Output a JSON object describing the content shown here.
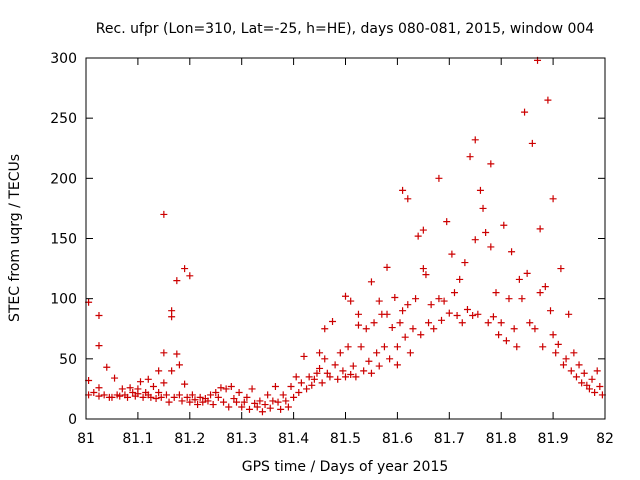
{
  "chart_data": {
    "type": "scatter",
    "title": "Rec. ufpr (Lon=310, Lat=-25, h=HE), days 080-081, 2015, window 004",
    "xlabel": "GPS time / Days of year 2015",
    "ylabel": "STEC from uqrg / TECUs",
    "xlim": [
      81,
      82
    ],
    "ylim": [
      0,
      300
    ],
    "xticks": [
      "81",
      "81.1",
      "81.2",
      "81.3",
      "81.4",
      "81.5",
      "81.6",
      "81.7",
      "81.8",
      "81.9",
      "82"
    ],
    "yticks": [
      "0",
      "50",
      "100",
      "150",
      "200",
      "250",
      "300"
    ],
    "grid": false,
    "marker": "+",
    "color": "#cc0000",
    "points": [
      [
        81.005,
        97
      ],
      [
        81.005,
        32
      ],
      [
        81.005,
        20
      ],
      [
        81.015,
        22
      ],
      [
        81.025,
        86
      ],
      [
        81.025,
        61
      ],
      [
        81.025,
        26
      ],
      [
        81.025,
        19
      ],
      [
        81.035,
        20
      ],
      [
        81.04,
        43
      ],
      [
        81.045,
        18
      ],
      [
        81.05,
        18
      ],
      [
        81.055,
        34
      ],
      [
        81.06,
        20
      ],
      [
        81.065,
        19
      ],
      [
        81.07,
        25
      ],
      [
        81.075,
        20
      ],
      [
        81.08,
        18
      ],
      [
        81.085,
        26
      ],
      [
        81.09,
        22
      ],
      [
        81.095,
        19
      ],
      [
        81.1,
        25
      ],
      [
        81.1,
        21
      ],
      [
        81.105,
        31
      ],
      [
        81.11,
        18
      ],
      [
        81.115,
        22
      ],
      [
        81.12,
        33
      ],
      [
        81.12,
        20
      ],
      [
        81.125,
        18
      ],
      [
        81.13,
        27
      ],
      [
        81.135,
        17
      ],
      [
        81.14,
        40
      ],
      [
        81.14,
        22
      ],
      [
        81.145,
        18
      ],
      [
        81.15,
        170
      ],
      [
        81.15,
        55
      ],
      [
        81.15,
        30
      ],
      [
        81.155,
        20
      ],
      [
        81.16,
        14
      ],
      [
        81.165,
        90
      ],
      [
        81.165,
        85
      ],
      [
        81.165,
        40
      ],
      [
        81.17,
        18
      ],
      [
        81.175,
        115
      ],
      [
        81.175,
        54
      ],
      [
        81.18,
        45
      ],
      [
        81.18,
        20
      ],
      [
        81.185,
        15
      ],
      [
        81.19,
        125
      ],
      [
        81.19,
        29
      ],
      [
        81.195,
        18
      ],
      [
        81.2,
        119
      ],
      [
        81.2,
        14
      ],
      [
        81.205,
        20
      ],
      [
        81.21,
        16
      ],
      [
        81.215,
        12
      ],
      [
        81.22,
        18
      ],
      [
        81.225,
        14
      ],
      [
        81.23,
        17
      ],
      [
        81.235,
        15
      ],
      [
        81.24,
        20
      ],
      [
        81.245,
        12
      ],
      [
        81.25,
        22
      ],
      [
        81.255,
        18
      ],
      [
        81.26,
        26
      ],
      [
        81.265,
        14
      ],
      [
        81.27,
        25
      ],
      [
        81.275,
        10
      ],
      [
        81.28,
        27
      ],
      [
        81.285,
        17
      ],
      [
        81.29,
        14
      ],
      [
        81.295,
        22
      ],
      [
        81.3,
        10
      ],
      [
        81.305,
        14
      ],
      [
        81.31,
        18
      ],
      [
        81.315,
        8
      ],
      [
        81.32,
        25
      ],
      [
        81.325,
        13
      ],
      [
        81.33,
        10
      ],
      [
        81.335,
        15
      ],
      [
        81.34,
        6
      ],
      [
        81.345,
        12
      ],
      [
        81.35,
        20
      ],
      [
        81.355,
        9
      ],
      [
        81.36,
        15
      ],
      [
        81.365,
        27
      ],
      [
        81.37,
        14
      ],
      [
        81.375,
        8
      ],
      [
        81.38,
        20
      ],
      [
        81.385,
        15
      ],
      [
        81.39,
        10
      ],
      [
        81.395,
        27
      ],
      [
        81.4,
        18
      ],
      [
        81.405,
        35
      ],
      [
        81.41,
        22
      ],
      [
        81.415,
        30
      ],
      [
        81.42,
        52
      ],
      [
        81.425,
        25
      ],
      [
        81.43,
        35
      ],
      [
        81.435,
        28
      ],
      [
        81.44,
        33
      ],
      [
        81.445,
        38
      ],
      [
        81.45,
        55
      ],
      [
        81.45,
        42
      ],
      [
        81.455,
        30
      ],
      [
        81.46,
        75
      ],
      [
        81.46,
        50
      ],
      [
        81.465,
        38
      ],
      [
        81.47,
        35
      ],
      [
        81.475,
        81
      ],
      [
        81.48,
        45
      ],
      [
        81.485,
        33
      ],
      [
        81.49,
        55
      ],
      [
        81.495,
        40
      ],
      [
        81.5,
        102
      ],
      [
        81.5,
        35
      ],
      [
        81.505,
        60
      ],
      [
        81.51,
        98
      ],
      [
        81.51,
        37
      ],
      [
        81.515,
        44
      ],
      [
        81.52,
        35
      ],
      [
        81.525,
        87
      ],
      [
        81.525,
        78
      ],
      [
        81.53,
        60
      ],
      [
        81.535,
        40
      ],
      [
        81.54,
        75
      ],
      [
        81.545,
        48
      ],
      [
        81.55,
        114
      ],
      [
        81.55,
        38
      ],
      [
        81.555,
        80
      ],
      [
        81.56,
        55
      ],
      [
        81.565,
        98
      ],
      [
        81.565,
        44
      ],
      [
        81.57,
        87
      ],
      [
        81.575,
        60
      ],
      [
        81.58,
        126
      ],
      [
        81.58,
        87
      ],
      [
        81.585,
        50
      ],
      [
        81.59,
        76
      ],
      [
        81.595,
        101
      ],
      [
        81.6,
        60
      ],
      [
        81.6,
        45
      ],
      [
        81.605,
        80
      ],
      [
        81.61,
        190
      ],
      [
        81.61,
        90
      ],
      [
        81.615,
        68
      ],
      [
        81.62,
        183
      ],
      [
        81.62,
        95
      ],
      [
        81.625,
        55
      ],
      [
        81.63,
        75
      ],
      [
        81.635,
        100
      ],
      [
        81.64,
        152
      ],
      [
        81.645,
        70
      ],
      [
        81.65,
        157
      ],
      [
        81.65,
        125
      ],
      [
        81.655,
        120
      ],
      [
        81.66,
        80
      ],
      [
        81.665,
        95
      ],
      [
        81.67,
        75
      ],
      [
        81.68,
        200
      ],
      [
        81.68,
        100
      ],
      [
        81.685,
        82
      ],
      [
        81.69,
        98
      ],
      [
        81.695,
        164
      ],
      [
        81.7,
        88
      ],
      [
        81.705,
        137
      ],
      [
        81.71,
        105
      ],
      [
        81.715,
        86
      ],
      [
        81.72,
        116
      ],
      [
        81.725,
        80
      ],
      [
        81.73,
        130
      ],
      [
        81.735,
        91
      ],
      [
        81.74,
        218
      ],
      [
        81.745,
        86
      ],
      [
        81.75,
        232
      ],
      [
        81.75,
        149
      ],
      [
        81.755,
        87
      ],
      [
        81.76,
        190
      ],
      [
        81.765,
        175
      ],
      [
        81.77,
        155
      ],
      [
        81.775,
        80
      ],
      [
        81.78,
        212
      ],
      [
        81.78,
        143
      ],
      [
        81.785,
        85
      ],
      [
        81.79,
        105
      ],
      [
        81.795,
        70
      ],
      [
        81.8,
        80
      ],
      [
        81.805,
        161
      ],
      [
        81.81,
        65
      ],
      [
        81.815,
        100
      ],
      [
        81.82,
        139
      ],
      [
        81.825,
        75
      ],
      [
        81.83,
        60
      ],
      [
        81.835,
        116
      ],
      [
        81.84,
        100
      ],
      [
        81.845,
        255
      ],
      [
        81.85,
        121
      ],
      [
        81.855,
        80
      ],
      [
        81.86,
        229
      ],
      [
        81.865,
        75
      ],
      [
        81.87,
        298
      ],
      [
        81.875,
        158
      ],
      [
        81.875,
        105
      ],
      [
        81.88,
        60
      ],
      [
        81.885,
        110
      ],
      [
        81.89,
        265
      ],
      [
        81.895,
        90
      ],
      [
        81.9,
        183
      ],
      [
        81.9,
        70
      ],
      [
        81.905,
        55
      ],
      [
        81.91,
        62
      ],
      [
        81.915,
        125
      ],
      [
        81.92,
        45
      ],
      [
        81.925,
        50
      ],
      [
        81.93,
        87
      ],
      [
        81.935,
        40
      ],
      [
        81.94,
        55
      ],
      [
        81.945,
        35
      ],
      [
        81.95,
        45
      ],
      [
        81.955,
        30
      ],
      [
        81.96,
        38
      ],
      [
        81.965,
        28
      ],
      [
        81.97,
        25
      ],
      [
        81.975,
        33
      ],
      [
        81.98,
        22
      ],
      [
        81.985,
        40
      ],
      [
        81.99,
        27
      ],
      [
        81.995,
        20
      ]
    ]
  }
}
